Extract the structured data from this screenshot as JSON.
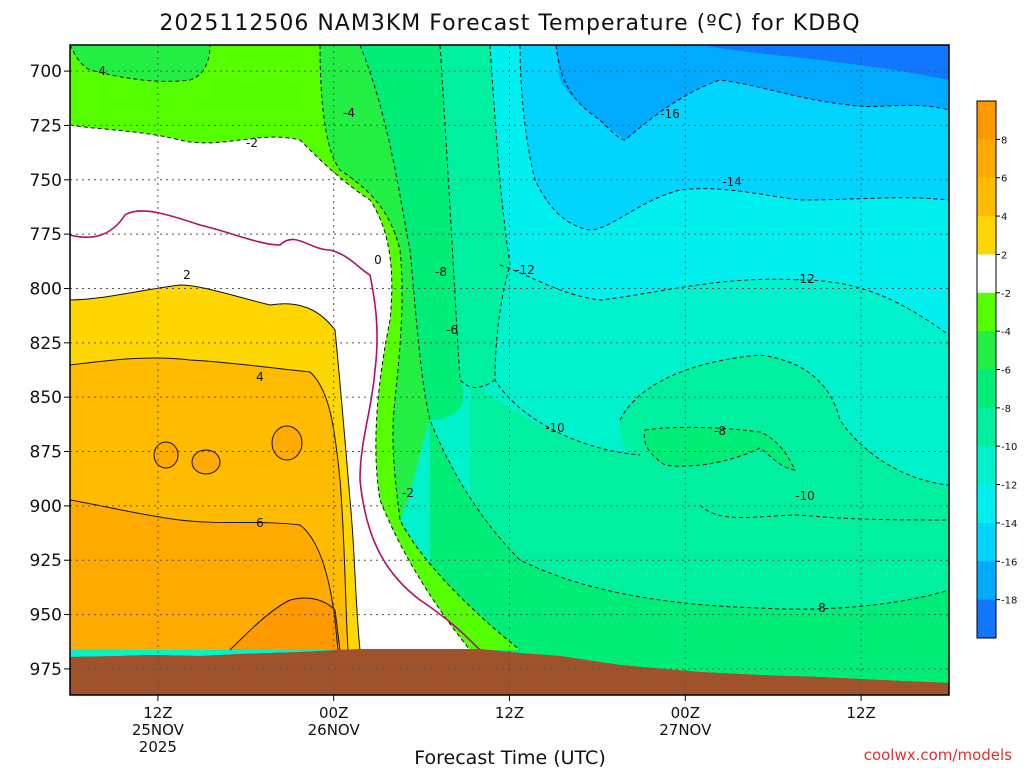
{
  "chart_data": {
    "type": "heatmap",
    "title": "2025112506 NAM3KM Forecast Temperature (ºC) for KDBQ",
    "xlabel": "Forecast Time (UTC)",
    "ylabel": "",
    "credit": "coolwx.com/models",
    "y_axis": {
      "ticks": [
        700,
        725,
        750,
        775,
        800,
        825,
        850,
        875,
        900,
        925,
        950,
        975
      ],
      "ylim": [
        688,
        987
      ],
      "direction": "pressure increasing downward"
    },
    "x_axis": {
      "ticks": [
        {
          "label1": "12Z",
          "label2": "25NOV",
          "label3": "2025"
        },
        {
          "label1": "00Z",
          "label2": "26NOV",
          "label3": ""
        },
        {
          "label1": "12Z",
          "label2": "",
          "label3": ""
        },
        {
          "label1": "00Z",
          "label2": "27NOV",
          "label3": ""
        },
        {
          "label1": "12Z",
          "label2": "",
          "label3": ""
        }
      ],
      "tick_times_hours_from_init": [
        6,
        18,
        30,
        42,
        54
      ],
      "xlim_hours_from_init": [
        0,
        60
      ]
    },
    "grid": true,
    "colorbar": {
      "placement": "right",
      "labels": [
        "8",
        "6",
        "4",
        "2",
        "-2",
        "-4",
        "-6",
        "-8",
        "-10",
        "-12",
        "-14",
        "-16",
        "-18"
      ],
      "bins": [
        {
          "range": "> 8",
          "color": "#ff9900"
        },
        {
          "range": "6 to 8",
          "color": "#ffaa00"
        },
        {
          "range": "4 to 6",
          "color": "#ffbb00"
        },
        {
          "range": "2 to 4",
          "color": "#ffd700"
        },
        {
          "range": "-2 to 2",
          "color": "#ffffff"
        },
        {
          "range": "-4 to -2",
          "color": "#55ff00"
        },
        {
          "range": "-6 to -4",
          "color": "#22ee44"
        },
        {
          "range": "-8 to -6",
          "color": "#00ee77"
        },
        {
          "range": "-10 to -8",
          "color": "#00f0a0"
        },
        {
          "range": "-12 to -10",
          "color": "#00f2cc"
        },
        {
          "range": "-14 to -12",
          "color": "#00f0f0"
        },
        {
          "range": "-16 to -14",
          "color": "#00d4ff"
        },
        {
          "range": "-18 to -16",
          "color": "#00aaff"
        },
        {
          "range": "< -18",
          "color": "#1177ff"
        }
      ]
    },
    "contour_labels": [
      "-4",
      "-2",
      "-4",
      "0",
      "2",
      "-8",
      "-12",
      "-16",
      "-14",
      "-12",
      "-6",
      "4",
      "-10",
      "-8",
      "6",
      "-2",
      "-10",
      "8"
    ],
    "colors": {
      "ground": "#a0522d",
      "freezing_line": "#b0106a",
      "contour": "#111111"
    }
  }
}
